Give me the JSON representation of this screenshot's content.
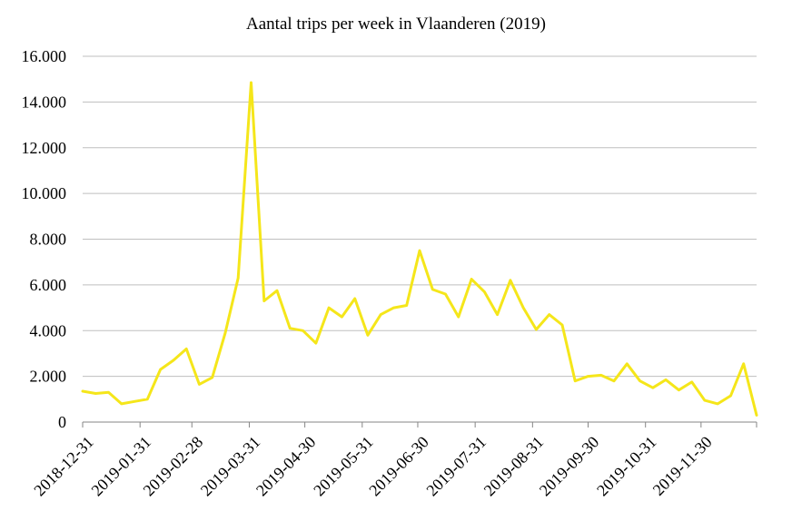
{
  "chart_data": {
    "type": "line",
    "title": "Aantal trips per week in Vlaanderen (2019)",
    "xlabel": "",
    "ylabel": "",
    "ylim": [
      0,
      16000
    ],
    "yticks": [
      0,
      2000,
      4000,
      6000,
      8000,
      10000,
      12000,
      14000,
      16000
    ],
    "ytick_labels": [
      "0",
      "2.000",
      "4.000",
      "6.000",
      "8.000",
      "10.000",
      "12.000",
      "14.000",
      "16.000"
    ],
    "xlim": [
      "2018-12-31",
      "2019-12-30"
    ],
    "xtick_dates": [
      "2018-12-31",
      "2019-01-31",
      "2019-02-28",
      "2019-03-31",
      "2019-04-30",
      "2019-05-31",
      "2019-06-30",
      "2019-07-31",
      "2019-08-31",
      "2019-09-30",
      "2019-10-31",
      "2019-11-30"
    ],
    "grid": true,
    "legend": "none",
    "series": [
      {
        "name": "Aantal trips",
        "color": "#f5e61a",
        "x": [
          "2018-12-31",
          "2019-01-07",
          "2019-01-14",
          "2019-01-21",
          "2019-01-28",
          "2019-02-04",
          "2019-02-11",
          "2019-02-18",
          "2019-02-25",
          "2019-03-04",
          "2019-03-11",
          "2019-03-18",
          "2019-03-25",
          "2019-04-01",
          "2019-04-08",
          "2019-04-15",
          "2019-04-22",
          "2019-04-29",
          "2019-05-06",
          "2019-05-13",
          "2019-05-20",
          "2019-05-27",
          "2019-06-03",
          "2019-06-10",
          "2019-06-17",
          "2019-06-24",
          "2019-07-01",
          "2019-07-08",
          "2019-07-15",
          "2019-07-22",
          "2019-07-29",
          "2019-08-05",
          "2019-08-12",
          "2019-08-19",
          "2019-08-26",
          "2019-09-02",
          "2019-09-09",
          "2019-09-16",
          "2019-09-23",
          "2019-09-30",
          "2019-10-07",
          "2019-10-14",
          "2019-10-21",
          "2019-10-28",
          "2019-11-04",
          "2019-11-11",
          "2019-11-18",
          "2019-11-25",
          "2019-12-02",
          "2019-12-09",
          "2019-12-16",
          "2019-12-23",
          "2019-12-30"
        ],
        "values": [
          1350,
          1250,
          1300,
          800,
          900,
          1000,
          2300,
          2700,
          3200,
          1650,
          1950,
          3900,
          6300,
          14850,
          5300,
          5750,
          4100,
          4000,
          3450,
          5000,
          4600,
          5400,
          3800,
          4700,
          5000,
          5100,
          7500,
          5800,
          5600,
          4600,
          6250,
          5700,
          4700,
          6200,
          5000,
          4050,
          4700,
          4250,
          1800,
          2000,
          2050,
          1800,
          2550,
          1800,
          1500,
          1850,
          1400,
          1750,
          950,
          800,
          1150,
          2550,
          300
        ]
      }
    ]
  }
}
